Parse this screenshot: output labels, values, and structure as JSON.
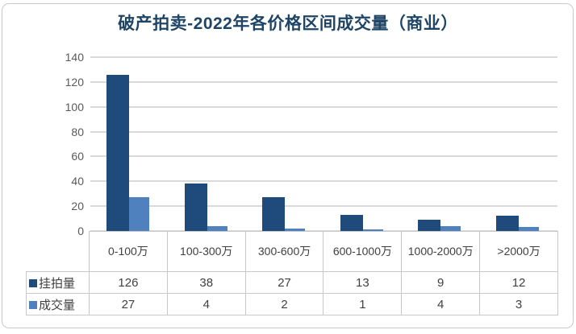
{
  "chart_data": {
    "type": "bar",
    "title": "破产拍卖-2022年各价格区间成交量（商业）",
    "categories": [
      "0-100万",
      "100-300万",
      "300-600万",
      "600-1000万",
      "1000-2000万",
      ">2000万"
    ],
    "series": [
      {
        "name": "挂拍量",
        "values": [
          126,
          38,
          27,
          13,
          9,
          12
        ],
        "color": "#1F4B7C"
      },
      {
        "name": "成交量",
        "values": [
          27,
          4,
          2,
          1,
          4,
          3
        ],
        "color": "#4E81BD"
      }
    ],
    "xlabel": "",
    "ylabel": "",
    "ylim": [
      0,
      140
    ],
    "yticks": [
      0,
      20,
      40,
      60,
      80,
      100,
      120,
      140
    ],
    "grid": true,
    "legend_position": "table-rows-left",
    "data_table_shown": true
  },
  "colors": {
    "title": "#1E4466",
    "grid": "#D9D9D9",
    "axis_label": "#595959",
    "table_text": "#404040",
    "table_border": "#C8C8C8",
    "card_border": "#C9C9C9",
    "background": "#FFFFFF"
  }
}
